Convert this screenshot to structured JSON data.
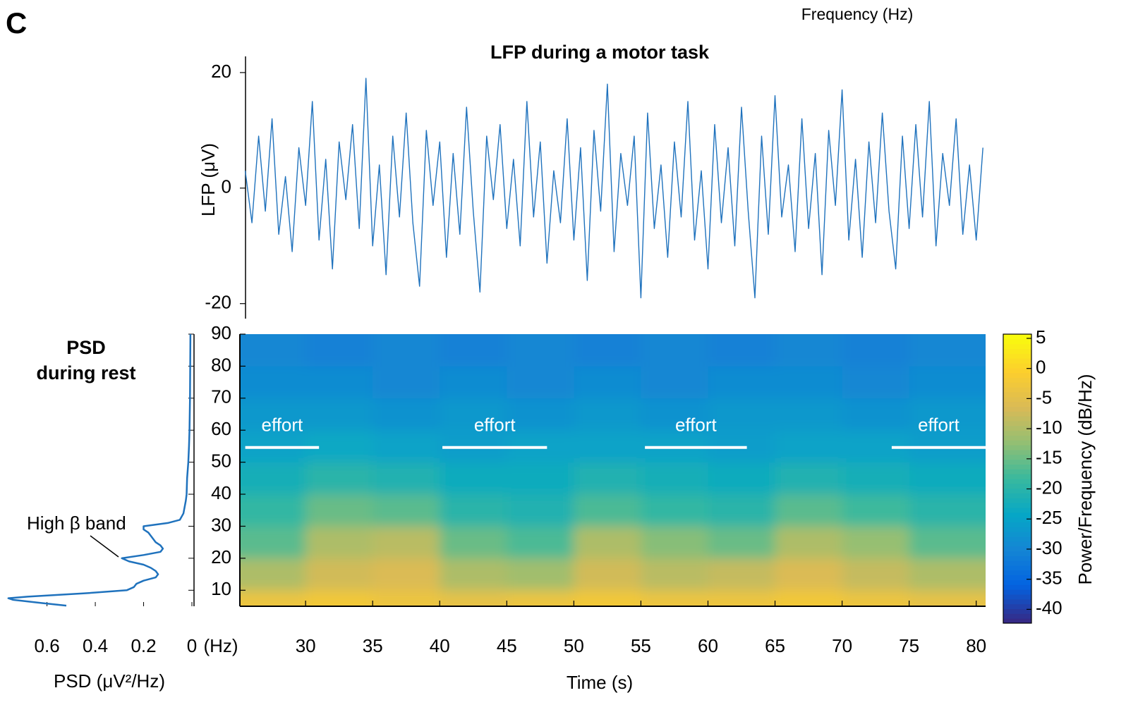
{
  "panel_label": "C",
  "header_note": "Frequency  (Hz)",
  "chart_data": [
    {
      "type": "line",
      "title": "LFP during a motor task",
      "ylabel": "LFP (μV)",
      "color": "#1f72bd",
      "xlim": [
        25.1,
        80.7
      ],
      "ylim": [
        -22.6,
        22.8
      ],
      "yticks": [
        20,
        0,
        -20
      ],
      "x": [
        25.5,
        26,
        26.5,
        27,
        27.5,
        28,
        28.5,
        29,
        29.5,
        30,
        30.5,
        31,
        31.5,
        32,
        32.5,
        33,
        33.5,
        34,
        34.5,
        35,
        35.5,
        36,
        36.5,
        37,
        37.5,
        38,
        38.5,
        39,
        39.5,
        40,
        40.5,
        41,
        41.5,
        42,
        42.5,
        43,
        43.5,
        44,
        44.5,
        45,
        45.5,
        46,
        46.5,
        47,
        47.5,
        48,
        48.5,
        49,
        49.5,
        50,
        50.5,
        51,
        51.5,
        52,
        52.5,
        53,
        53.5,
        54,
        54.5,
        55,
        55.5,
        56,
        56.5,
        57,
        57.5,
        58,
        58.5,
        59,
        59.5,
        60,
        60.5,
        61,
        61.5,
        62,
        62.5,
        63,
        63.5,
        64,
        64.5,
        65,
        65.5,
        66,
        66.5,
        67,
        67.5,
        68,
        68.5,
        69,
        69.5,
        70,
        70.5,
        71,
        71.5,
        72,
        72.5,
        73,
        73.5,
        74,
        74.5,
        75,
        75.5,
        76,
        76.5,
        77,
        77.5,
        78,
        78.5,
        79,
        79.5,
        80,
        80.5
      ],
      "values": [
        3,
        -6,
        9,
        -4,
        12,
        -8,
        2,
        -11,
        7,
        -3,
        15,
        -9,
        5,
        -14,
        8,
        -2,
        11,
        -7,
        19,
        -10,
        4,
        -15,
        9,
        -5,
        13,
        -6,
        -17,
        10,
        -3,
        8,
        -12,
        6,
        -8,
        14,
        -4,
        -18,
        9,
        -2,
        11,
        -7,
        5,
        -10,
        15,
        -5,
        8,
        -13,
        3,
        -6,
        12,
        -9,
        7,
        -16,
        10,
        -4,
        18,
        -11,
        6,
        -3,
        9,
        -19,
        13,
        -7,
        4,
        -12,
        8,
        -5,
        15,
        -9,
        3,
        -14,
        11,
        -6,
        7,
        -10,
        14,
        -4,
        -19,
        9,
        -8,
        16,
        -5,
        4,
        -11,
        12,
        -7,
        6,
        -15,
        10,
        -3,
        17,
        -9,
        5,
        -12,
        8,
        -6,
        13,
        -4,
        -14,
        9,
        -7,
        11,
        -5,
        15,
        -10,
        6,
        -3,
        12,
        -8,
        4,
        -9,
        7
      ]
    },
    {
      "type": "heatmap",
      "xlabel": "Time (s)",
      "colormap": "parula",
      "xlim": [
        25.1,
        80.7
      ],
      "ylim": [
        5,
        90
      ],
      "xticks": [
        30,
        35,
        40,
        45,
        50,
        55,
        60,
        65,
        70,
        75,
        80
      ],
      "yticks": [
        10,
        20,
        30,
        40,
        50,
        60,
        70,
        80,
        90
      ],
      "xbins": [
        25.1,
        30,
        35,
        40,
        45,
        50,
        55,
        60,
        65,
        70,
        75,
        80.7
      ],
      "ybins": [
        5,
        10,
        20,
        30,
        40,
        50,
        60,
        70,
        80,
        90
      ],
      "z": [
        [
          -3,
          -2,
          -3,
          -4,
          -3,
          -2,
          -3,
          -3,
          -2,
          -3,
          -4
        ],
        [
          -10,
          -7,
          -6,
          -10,
          -11,
          -7,
          -9,
          -8,
          -6,
          -8,
          -10
        ],
        [
          -16,
          -10,
          -9,
          -15,
          -17,
          -10,
          -13,
          -15,
          -10,
          -12,
          -16
        ],
        [
          -19,
          -15,
          -16,
          -20,
          -21,
          -17,
          -19,
          -20,
          -16,
          -18,
          -20
        ],
        [
          -22,
          -20,
          -21,
          -23,
          -23,
          -21,
          -22,
          -23,
          -21,
          -22,
          -23
        ],
        [
          -25,
          -24,
          -25,
          -26,
          -25,
          -25,
          -25,
          -26,
          -25,
          -25,
          -26
        ],
        [
          -27,
          -27,
          -28,
          -27,
          -28,
          -27,
          -28,
          -27,
          -27,
          -28,
          -27
        ],
        [
          -29,
          -29,
          -30,
          -29,
          -30,
          -29,
          -30,
          -29,
          -29,
          -30,
          -29
        ],
        [
          -30,
          -31,
          -30,
          -31,
          -30,
          -31,
          -30,
          -31,
          -30,
          -31,
          -30
        ]
      ],
      "colorbar": {
        "label": "Power/Frequency (dB/Hz)",
        "clim": [
          -42.3,
          5.7
        ],
        "ticks": [
          5,
          0,
          -5,
          -10,
          -15,
          -20,
          -25,
          -30,
          -35,
          -40
        ]
      },
      "annotations": [
        {
          "text": "effort",
          "x": [
            25.5,
            31
          ],
          "y": 54.6
        },
        {
          "text": "effort",
          "x": [
            40.2,
            48
          ],
          "y": 54.6
        },
        {
          "text": "effort",
          "x": [
            55.3,
            62.9
          ],
          "y": 54.6
        },
        {
          "text": "effort",
          "x": [
            73.7,
            80.7
          ],
          "y": 54.6
        }
      ]
    },
    {
      "type": "line",
      "orientation": "horizontal",
      "title": [
        "PSD",
        "during rest"
      ],
      "xlabel": "PSD (μV²/Hz)",
      "y_unit_label": "(Hz)",
      "annotation": "High β band",
      "color": "#1f72bd",
      "xlim": [
        0.78,
        0
      ],
      "ylim": [
        5,
        90
      ],
      "xticks": [
        0.6,
        0.4,
        0.2,
        0
      ],
      "y": [
        5.2,
        6,
        7,
        7.5,
        8,
        9,
        10,
        11,
        12,
        13,
        14,
        15,
        16,
        17,
        18,
        19,
        20,
        21,
        22,
        23,
        24,
        25,
        26,
        27,
        28,
        29,
        30,
        31,
        32,
        34,
        36,
        38,
        40,
        45,
        50,
        55,
        60,
        70,
        80,
        90
      ],
      "values": [
        0.52,
        0.62,
        0.74,
        0.76,
        0.68,
        0.45,
        0.27,
        0.24,
        0.23,
        0.2,
        0.15,
        0.14,
        0.15,
        0.17,
        0.2,
        0.26,
        0.29,
        0.2,
        0.13,
        0.12,
        0.13,
        0.15,
        0.16,
        0.17,
        0.18,
        0.2,
        0.2,
        0.1,
        0.05,
        0.035,
        0.03,
        0.025,
        0.022,
        0.02,
        0.015,
        0.012,
        0.01,
        0.008,
        0.007,
        0.006
      ]
    }
  ]
}
